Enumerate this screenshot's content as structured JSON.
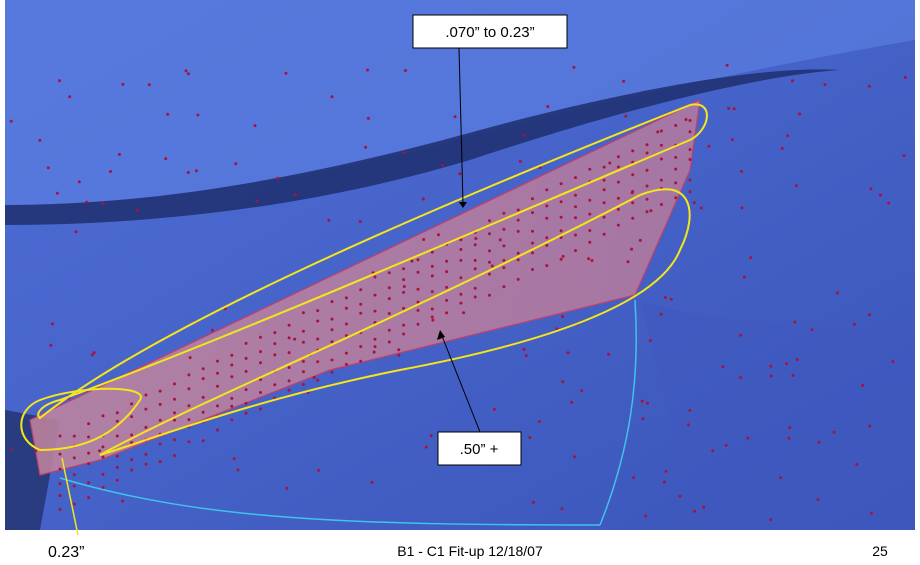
{
  "annotations": {
    "top_label": ".070” to 0.23”",
    "bottom_label": ".50” +",
    "corner_label": "0.23”"
  },
  "footer": {
    "title": "B1 - C1 Fit-up 12/18/07",
    "page": "25"
  }
}
